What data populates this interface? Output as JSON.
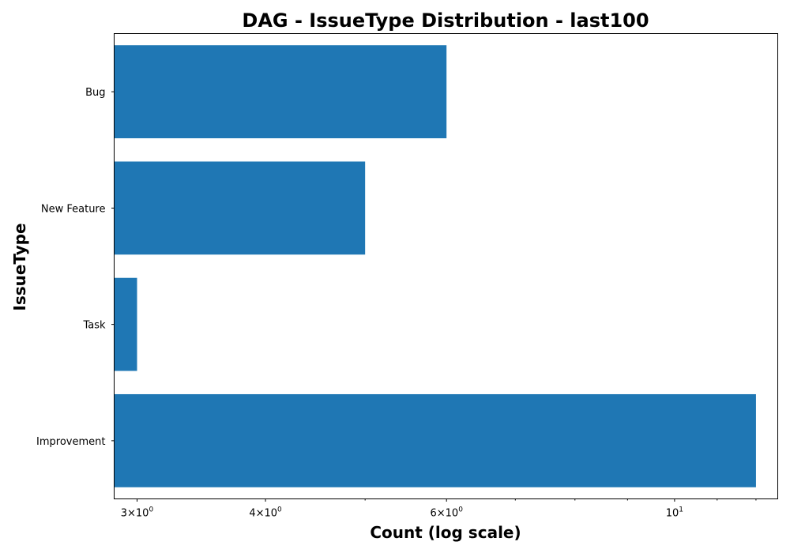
{
  "chart_data": {
    "type": "bar",
    "orientation": "horizontal",
    "title": "DAG - IssueType Distribution - last100",
    "xlabel": "Count (log scale)",
    "ylabel": "IssueType",
    "xscale": "log",
    "xlim": [
      2.85,
      12.6
    ],
    "categories": [
      "Bug",
      "New Feature",
      "Task",
      "Improvement"
    ],
    "values": [
      6,
      5,
      3,
      12
    ],
    "color": "#1f77b4",
    "major_ticks": [
      {
        "value": 3,
        "base": "3×10",
        "exp": "0"
      },
      {
        "value": 4,
        "base": "4×10",
        "exp": "0"
      },
      {
        "value": 6,
        "base": "6×10",
        "exp": "0"
      },
      {
        "value": 10,
        "base": "10",
        "exp": "1"
      }
    ],
    "minor_ticks": [
      5,
      7,
      8,
      9,
      11,
      12
    ],
    "grid": false,
    "legend": "none"
  }
}
